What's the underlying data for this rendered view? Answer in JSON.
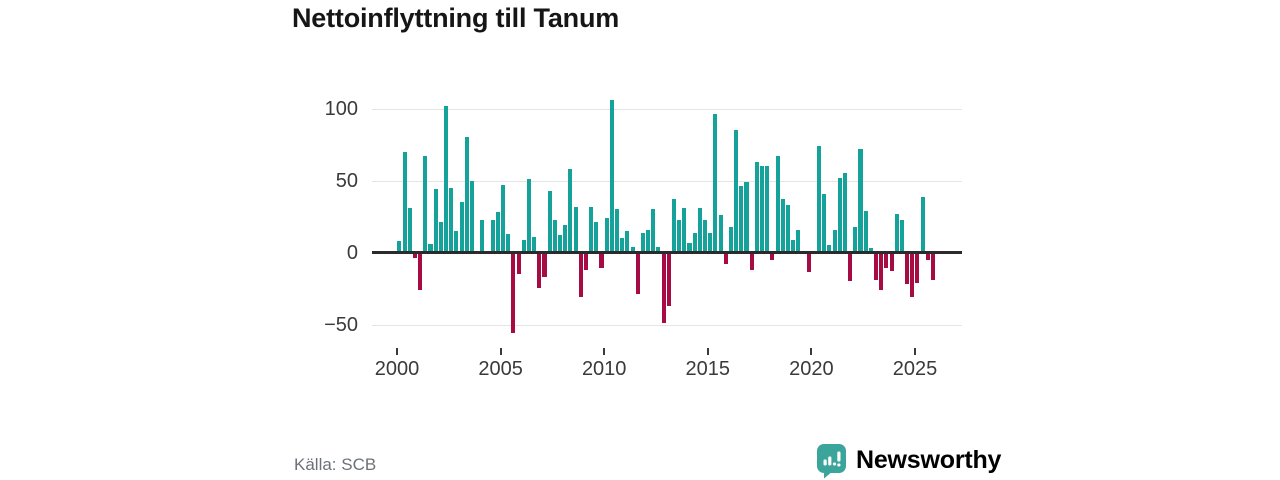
{
  "title": "Nettoinflyttning till Tanum",
  "footer": {
    "source": "Källa: SCB",
    "logo_text": "Newsworthy"
  },
  "colors": {
    "positive_bar": "#14a29a",
    "negative_bar": "#a60c43",
    "logo_teal": "#3ba49b",
    "axis_line": "#2b2b2b",
    "gridline": "#e4e4e4",
    "tick_label": "#3a3a3a",
    "source_text": "#6d7278"
  },
  "chart_data": {
    "type": "bar",
    "title": "Nettoinflyttning till Tanum",
    "frequency": "quarterly",
    "x_start": "2000 Q1",
    "x_end": "2025 Q4",
    "start_year": 2000,
    "values": [
      7,
      69,
      30,
      -3,
      -25,
      66,
      5,
      43,
      20,
      101,
      44,
      14,
      34,
      79,
      49,
      0,
      22,
      0,
      22,
      27,
      46,
      12,
      -55,
      -14,
      8,
      50,
      10,
      -24,
      -16,
      42,
      22,
      11,
      18,
      57,
      31,
      -30,
      -11,
      31,
      20,
      -10,
      23,
      105,
      29,
      9,
      14,
      3,
      -28,
      13,
      15,
      29,
      3,
      -48,
      -36,
      36,
      22,
      30,
      6,
      13,
      30,
      22,
      13,
      95,
      25,
      -7,
      17,
      84,
      45,
      48,
      -11,
      62,
      59,
      59,
      -4,
      66,
      36,
      32,
      8,
      15,
      0,
      -13,
      0,
      73,
      40,
      4,
      15,
      51,
      54,
      -19,
      17,
      71,
      28,
      2,
      -18,
      -25,
      -10,
      -12,
      26,
      22,
      -21,
      -30,
      -20,
      38,
      -4,
      -18
    ],
    "y_ticks": [
      {
        "label": "100",
        "value": 100
      },
      {
        "label": "50",
        "value": 50
      },
      {
        "label": "0",
        "value": 0
      },
      {
        "label": "−50",
        "value": -50
      }
    ],
    "x_ticks": [
      {
        "label": "2000",
        "year": 2000
      },
      {
        "label": "2005",
        "year": 2005
      },
      {
        "label": "2010",
        "year": 2010
      },
      {
        "label": "2015",
        "year": 2015
      },
      {
        "label": "2020",
        "year": 2020
      },
      {
        "label": "2025",
        "year": 2025
      }
    ],
    "ylim": [
      -60,
      110
    ],
    "grid": "horizontal",
    "legend": "none"
  }
}
